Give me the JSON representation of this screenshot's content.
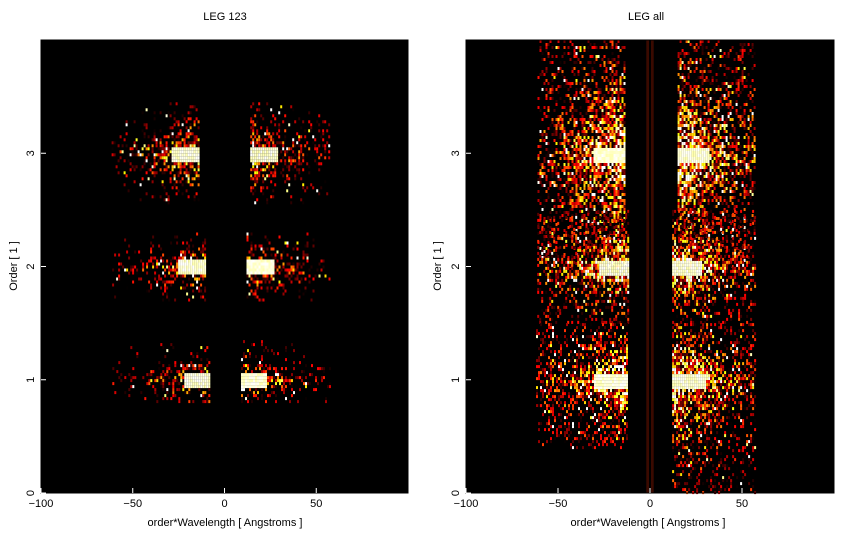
{
  "chart_data": [
    {
      "type": "heatmap",
      "title": "LEG 123",
      "xlabel": "order*Wavelength [ Angstroms ]",
      "ylabel": "Order [ 1 ]",
      "xlim": [
        -100,
        100
      ],
      "ylim": [
        0,
        4
      ],
      "xticks": [
        -100,
        -50,
        0,
        50
      ],
      "yticks": [
        0,
        1,
        2,
        3
      ],
      "colormap": "hot",
      "background": "#000000",
      "blobs": [
        {
          "order": 3,
          "cx": -16,
          "half_width": 7,
          "spread_inner": 2,
          "spread_outer": 52,
          "y_low": 2.55,
          "y_high": 3.45
        },
        {
          "order": 3,
          "cx": 16,
          "half_width": 7,
          "spread_inner": 2,
          "spread_outer": 52,
          "y_low": 2.55,
          "y_high": 3.45
        },
        {
          "order": 2,
          "cx": -13,
          "half_width": 7,
          "spread_inner": 2,
          "spread_outer": 55,
          "y_low": 1.7,
          "y_high": 2.3
        },
        {
          "order": 2,
          "cx": 14,
          "half_width": 7,
          "spread_inner": 2,
          "spread_outer": 55,
          "y_low": 1.7,
          "y_high": 2.3
        },
        {
          "order": 1,
          "cx": -10,
          "half_width": 6,
          "spread_inner": 2,
          "spread_outer": 57,
          "y_low": 0.82,
          "y_high": 1.35
        },
        {
          "order": 1,
          "cx": 11,
          "half_width": 6,
          "spread_inner": 2,
          "spread_outer": 55,
          "y_low": 0.82,
          "y_high": 1.35
        }
      ]
    },
    {
      "type": "heatmap",
      "title": "LEG all",
      "xlabel": "order*Wavelength [ Angstroms ]",
      "ylabel": "Order [ 1 ]",
      "xlim": [
        -100,
        100
      ],
      "ylim": [
        0,
        4
      ],
      "xticks": [
        -100,
        -50,
        0,
        50
      ],
      "yticks": [
        0,
        1,
        2,
        3
      ],
      "colormap": "hot",
      "background": "#000000",
      "blobs": [
        {
          "order": 3,
          "cx": -16,
          "half_width": 9,
          "spread_inner": 2,
          "spread_outer": 60,
          "y_low": 2.0,
          "y_high": 4.0
        },
        {
          "order": 3,
          "cx": 17,
          "half_width": 9,
          "spread_inner": 2,
          "spread_outer": 58,
          "y_low": 2.0,
          "y_high": 4.0
        },
        {
          "order": 2,
          "cx": -14,
          "half_width": 8,
          "spread_inner": 2,
          "spread_outer": 60,
          "y_low": 1.5,
          "y_high": 2.5
        },
        {
          "order": 2,
          "cx": 14,
          "half_width": 8,
          "spread_inner": 2,
          "spread_outer": 58,
          "y_low": 1.5,
          "y_high": 2.5
        },
        {
          "order": 1,
          "cx": -15,
          "half_width": 10,
          "spread_inner": 2,
          "spread_outer": 62,
          "y_low": 0.4,
          "y_high": 1.5
        },
        {
          "order": 1,
          "cx": 14,
          "half_width": 10,
          "spread_inner": 2,
          "spread_outer": 60,
          "y_low": 0.0,
          "y_high": 1.5
        }
      ]
    }
  ]
}
